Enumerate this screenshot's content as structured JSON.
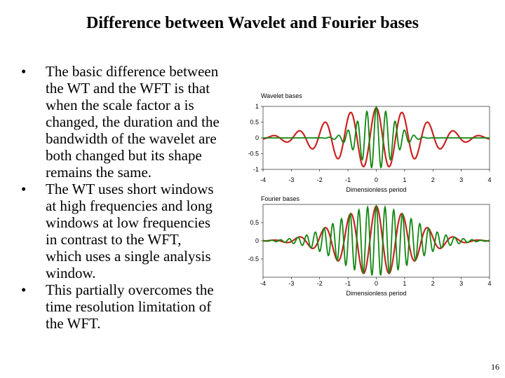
{
  "slide": {
    "title": "Difference between Wavelet and Fourier bases",
    "bullets": [
      "The basic difference between\nthe WT and the WFT is that\nwhen the scale factor a is\nchanged, the duration and the\nbandwidth of the wavelet are\nboth changed but its shape\nremains the same.",
      "The WT uses short windows\nat high frequencies and long\nwindows at low frequencies\nin contrast to the WFT,\nwhich uses a single analysis\nwindow.",
      "This partially overcomes the\ntime resolution limitation of\nthe WFT."
    ],
    "page_number": "16"
  },
  "chart_data": [
    {
      "type": "line",
      "title": "Wavelet bases",
      "xlabel": "Dimensionless period",
      "xlim": [
        -4,
        4
      ],
      "ylim": [
        -1,
        1
      ],
      "xticks": [
        "-4",
        "-3",
        "-2",
        "-1",
        "0",
        "1",
        "2",
        "3",
        "4"
      ],
      "yticks": [
        "1",
        "0.5",
        "0",
        "-0.5",
        "-1"
      ],
      "series": [
        {
          "color": "#cc2222",
          "description": "wide, low-frequency wavelet",
          "frequency": 2.2,
          "envelope_width": 1.6,
          "amplitude": 0.95
        },
        {
          "color": "#118811",
          "description": "narrow, high-frequency wavelet",
          "frequency": 6.0,
          "envelope_width": 0.6,
          "amplitude": 0.98
        }
      ]
    },
    {
      "type": "line",
      "title": "Fourier bases",
      "xlabel": "Dimensionless period",
      "xlim": [
        -4,
        4
      ],
      "ylim": [
        -1,
        1
      ],
      "xticks": [
        "-4",
        "-3",
        "-2",
        "-1",
        "0",
        "1",
        "2",
        "3",
        "4"
      ],
      "yticks": [
        "0.5",
        "0",
        "-0.5"
      ],
      "series": [
        {
          "color": "#cc2222",
          "description": "low-frequency windowed basis",
          "frequency": 2.2,
          "envelope_width": 1.3,
          "amplitude": 0.95
        },
        {
          "color": "#118811",
          "description": "high-frequency windowed basis",
          "frequency": 6.5,
          "envelope_width": 1.3,
          "amplitude": 0.95
        }
      ]
    }
  ]
}
